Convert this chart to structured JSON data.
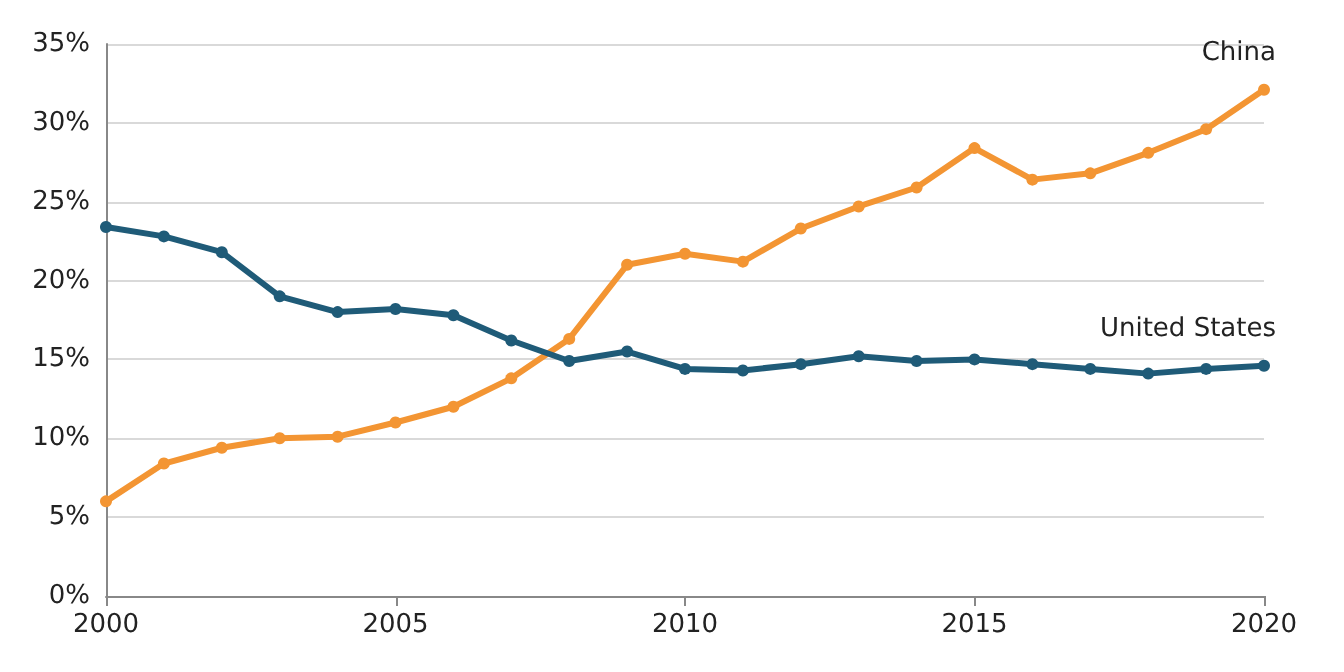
{
  "chart_data": {
    "type": "line",
    "x": [
      2000,
      2001,
      2002,
      2003,
      2004,
      2005,
      2006,
      2007,
      2008,
      2009,
      2010,
      2011,
      2012,
      2013,
      2014,
      2015,
      2016,
      2017,
      2018,
      2019,
      2020
    ],
    "series": [
      {
        "name": "China",
        "color": "#f39533",
        "values": [
          6.0,
          8.4,
          9.4,
          10.0,
          10.1,
          11.0,
          12.0,
          13.8,
          16.3,
          21.0,
          21.7,
          21.2,
          23.3,
          24.7,
          25.9,
          28.4,
          26.4,
          26.8,
          28.1,
          29.6,
          32.1
        ]
      },
      {
        "name": "United States",
        "color": "#1f5b78",
        "values": [
          23.4,
          22.8,
          21.8,
          19.0,
          18.0,
          18.2,
          17.8,
          16.2,
          14.9,
          15.5,
          14.4,
          14.3,
          14.7,
          15.2,
          14.9,
          15.0,
          14.7,
          14.4,
          14.1,
          14.4,
          14.6
        ]
      }
    ],
    "xlim": [
      2000,
      2020
    ],
    "xticks": [
      2000,
      2005,
      2010,
      2015,
      2020
    ],
    "ylim": [
      0,
      35
    ],
    "yticks": [
      {
        "value": 0,
        "label": "0%"
      },
      {
        "value": 5,
        "label": "5%"
      },
      {
        "value": 10,
        "label": "10%"
      },
      {
        "value": 15,
        "label": "15%"
      },
      {
        "value": 20,
        "label": "20%"
      },
      {
        "value": 25,
        "label": "25%"
      },
      {
        "value": 30,
        "label": "30%"
      },
      {
        "value": 35,
        "label": "35%"
      }
    ],
    "grid": "y",
    "legend": false,
    "marker": "circle",
    "line_style": "solid"
  }
}
